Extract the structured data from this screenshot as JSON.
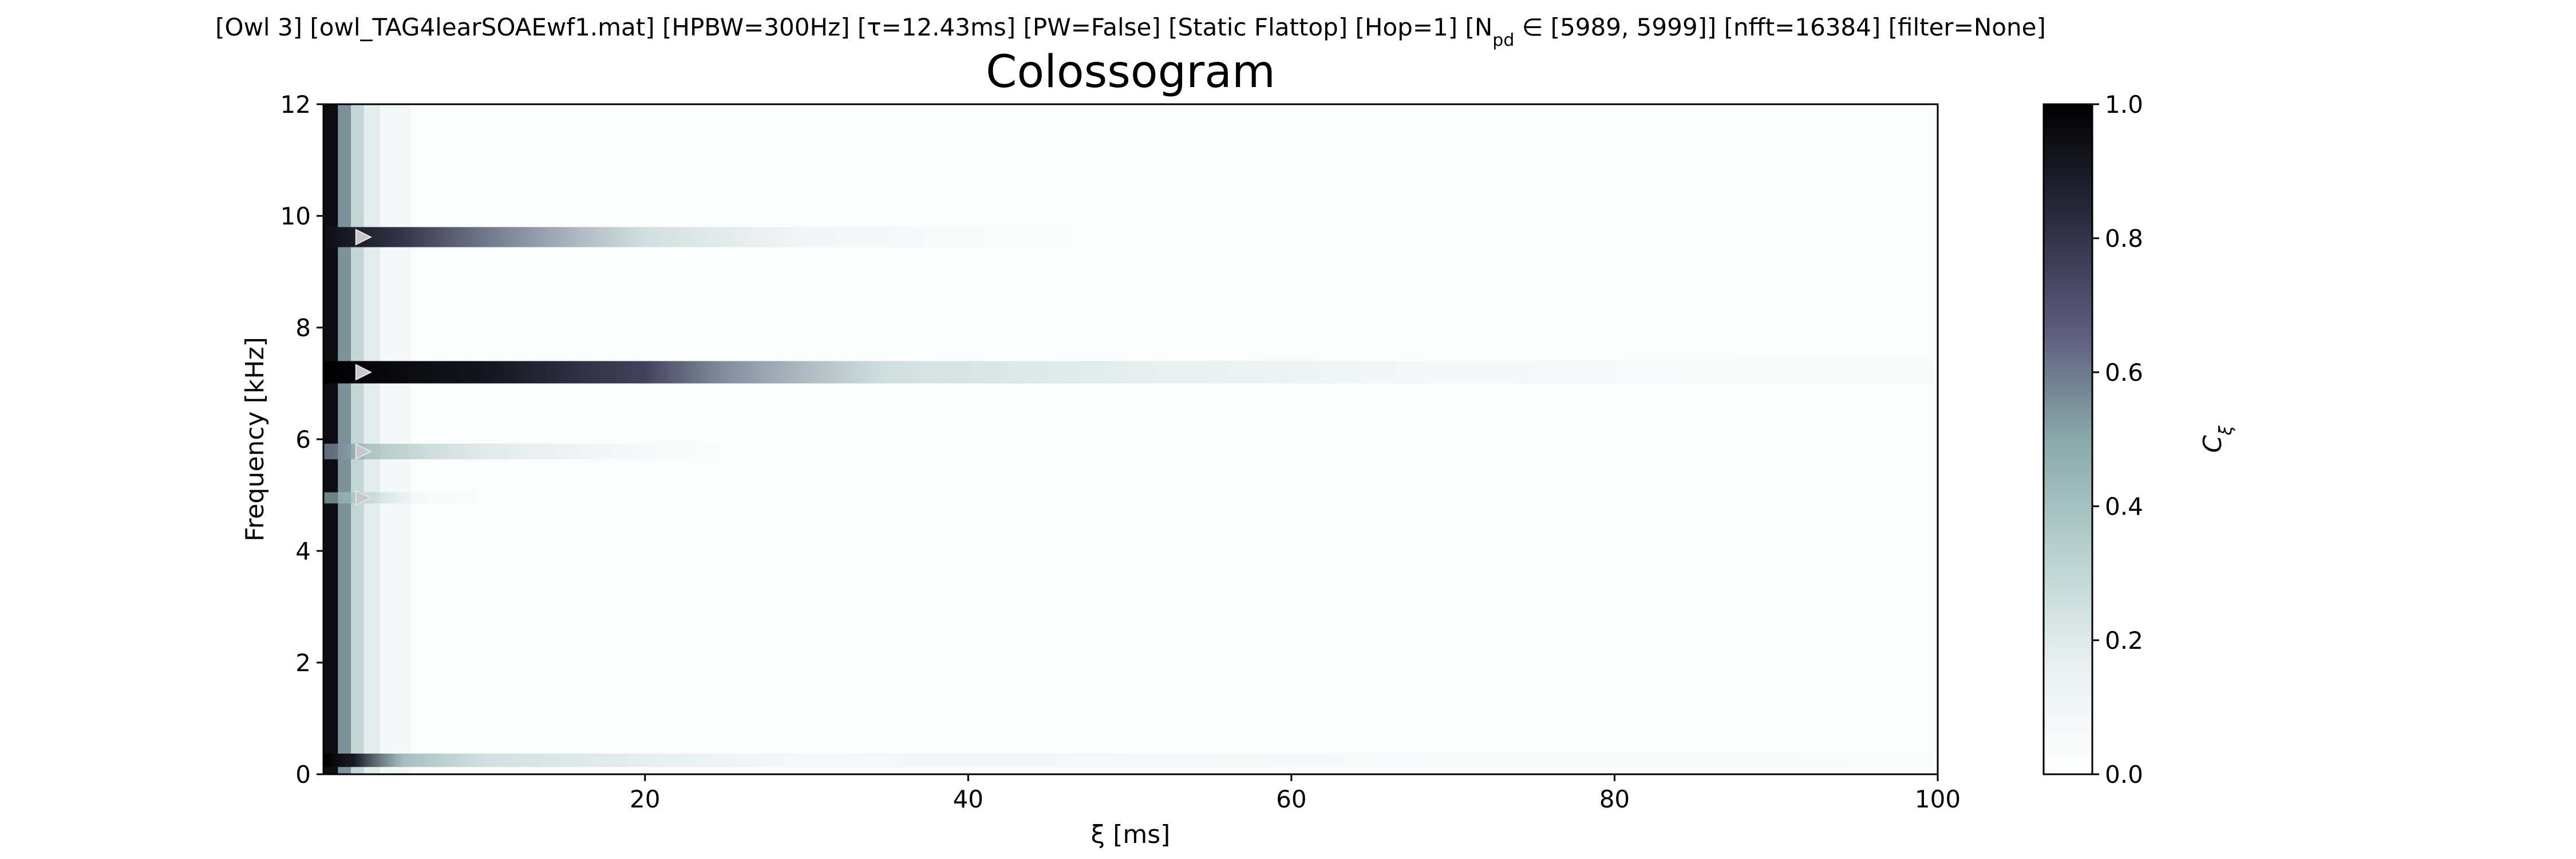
{
  "header_text": "[Owl 3]   [owl_TAG4learSOAEwf1.mat]   [HPBW=300Hz]   [τ=12.43ms]   [PW=False]   [Static Flattop]   [Hop=1]   [N_pd ∈ [5989, 5999]]   [nfft=16384]   [filter=None]",
  "chart_data": {
    "type": "heatmap",
    "title": "Colossogram",
    "xlabel": "ξ [ms]",
    "ylabel": "Frequency [kHz]",
    "xlim": [
      0.1,
      100
    ],
    "ylim": [
      0,
      12
    ],
    "x_ticks": [
      20,
      40,
      60,
      80,
      100
    ],
    "y_ticks": [
      0,
      2,
      4,
      6,
      8,
      10,
      12
    ],
    "colorbar": {
      "label": "C_ξ",
      "range": [
        0,
        1
      ],
      "ticks": [
        0.0,
        0.2,
        0.4,
        0.6,
        0.8,
        1.0
      ],
      "colormap": "bone_r",
      "colors": [
        "#ffffff",
        "#e8f0f0",
        "#b8d0d0",
        "#8aa9a9",
        "#5b5a7c",
        "#2a2a3e",
        "#000000"
      ]
    },
    "background_value": 0.03,
    "early_columns": [
      {
        "x_start": 0.1,
        "x_end": 1.0,
        "value": 0.95
      },
      {
        "x_start": 1.0,
        "x_end": 1.8,
        "value": 0.55
      },
      {
        "x_start": 1.8,
        "x_end": 2.6,
        "value": 0.3
      },
      {
        "x_start": 2.6,
        "x_end": 3.6,
        "value": 0.18
      },
      {
        "x_start": 3.6,
        "x_end": 5.5,
        "value": 0.08
      }
    ],
    "bands": [
      {
        "freq_khz": 0.25,
        "half_width_khz": 0.12,
        "decay": [
          [
            0.1,
            1.0
          ],
          [
            2,
            0.9
          ],
          [
            5,
            0.5
          ],
          [
            10,
            0.35
          ],
          [
            20,
            0.25
          ],
          [
            30,
            0.15
          ],
          [
            40,
            0.18
          ],
          [
            60,
            0.12
          ],
          [
            80,
            0.08
          ],
          [
            100,
            0.06
          ]
        ]
      },
      {
        "freq_khz": 4.95,
        "half_width_khz": 0.1,
        "decay": [
          [
            0.1,
            0.5
          ],
          [
            3,
            0.35
          ],
          [
            6,
            0.12
          ],
          [
            10,
            0.03
          ]
        ]
      },
      {
        "freq_khz": 5.78,
        "half_width_khz": 0.14,
        "decay": [
          [
            0.1,
            0.6
          ],
          [
            3,
            0.45
          ],
          [
            10,
            0.28
          ],
          [
            20,
            0.12
          ],
          [
            25,
            0.03
          ]
        ]
      },
      {
        "freq_khz": 7.2,
        "half_width_khz": 0.2,
        "decay": [
          [
            0.1,
            1.0
          ],
          [
            10,
            0.92
          ],
          [
            20,
            0.75
          ],
          [
            25,
            0.6
          ],
          [
            35,
            0.35
          ],
          [
            50,
            0.25
          ],
          [
            70,
            0.15
          ],
          [
            85,
            0.1
          ],
          [
            100,
            0.08
          ]
        ]
      },
      {
        "freq_khz": 9.62,
        "half_width_khz": 0.18,
        "decay": [
          [
            0.1,
            0.95
          ],
          [
            5,
            0.8
          ],
          [
            12,
            0.6
          ],
          [
            20,
            0.35
          ],
          [
            30,
            0.18
          ],
          [
            42,
            0.06
          ],
          [
            50,
            0.02
          ]
        ]
      }
    ],
    "peak_markers": [
      {
        "x": 2.5,
        "freq_khz": 9.62
      },
      {
        "x": 2.5,
        "freq_khz": 7.2
      },
      {
        "x": 2.5,
        "freq_khz": 5.78
      },
      {
        "x": 2.5,
        "freq_khz": 4.95
      }
    ]
  }
}
